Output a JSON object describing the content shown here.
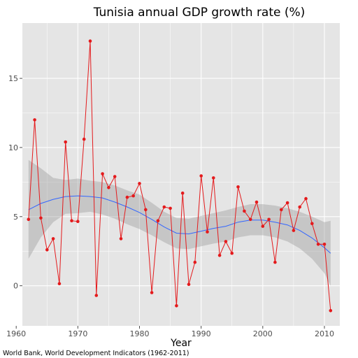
{
  "chart_data": {
    "type": "line",
    "title": "Tunisia annual GDP growth rate (%)",
    "xlabel": "Year",
    "ylabel": "",
    "caption": "World Bank, World Development Indicators (1962-2011)",
    "xlim": [
      1961,
      2012.5
    ],
    "ylim": [
      -2.9,
      19.0
    ],
    "x_ticks": [
      1960,
      1970,
      1980,
      1990,
      2000,
      2010
    ],
    "y_ticks": [
      0,
      5,
      10,
      15
    ],
    "grid": true,
    "legend": "none",
    "colors": {
      "panel": "#e5e5e5",
      "grid": "#ffffff",
      "series": "#e41a1c",
      "smooth": "#3366ff",
      "band": "#999999"
    },
    "series": [
      {
        "x": [
          1962,
          1963,
          1964,
          1965,
          1966,
          1967,
          1968,
          1969,
          1970,
          1971,
          1972,
          1973,
          1974,
          1975,
          1976,
          1977,
          1978,
          1979,
          1980,
          1981,
          1982,
          1983,
          1984,
          1985,
          1986,
          1987,
          1988,
          1989,
          1990,
          1991,
          1992,
          1993,
          1994,
          1995,
          1996,
          1997,
          1998,
          1999,
          2000,
          2001,
          2002,
          2003,
          2004,
          2005,
          2006,
          2007,
          2008,
          2009,
          2010,
          2011
        ],
        "y": [
          4.8,
          12.0,
          4.9,
          2.6,
          3.4,
          0.15,
          10.4,
          4.7,
          4.65,
          10.6,
          17.7,
          -0.7,
          8.1,
          7.1,
          7.9,
          3.4,
          6.4,
          6.5,
          7.4,
          5.5,
          -0.5,
          4.7,
          5.7,
          5.6,
          -1.45,
          6.7,
          0.1,
          1.7,
          7.95,
          3.9,
          7.8,
          2.2,
          3.2,
          2.35,
          7.15,
          5.4,
          4.8,
          6.05,
          4.3,
          4.8,
          1.7,
          5.5,
          6.0,
          4.0,
          5.7,
          6.3,
          4.5,
          3.0,
          3.0,
          -1.8
        ]
      }
    ],
    "smooth": {
      "x": [
        1962,
        1964,
        1966,
        1968,
        1970,
        1972,
        1974,
        1976,
        1978,
        1980,
        1982,
        1984,
        1986,
        1988,
        1990,
        1992,
        1994,
        1996,
        1998,
        2000,
        2002,
        2004,
        2006,
        2008,
        2010,
        2011
      ],
      "y": [
        5.5,
        5.95,
        6.25,
        6.45,
        6.5,
        6.45,
        6.35,
        6.05,
        5.7,
        5.3,
        4.8,
        4.25,
        3.8,
        3.75,
        3.95,
        4.15,
        4.3,
        4.6,
        4.75,
        4.75,
        4.6,
        4.4,
        4.0,
        3.45,
        2.75,
        2.35
      ],
      "lower": [
        1.95,
        3.5,
        4.6,
        5.2,
        5.25,
        5.35,
        5.15,
        4.85,
        4.45,
        4.1,
        3.65,
        3.15,
        2.7,
        2.65,
        2.85,
        3.05,
        3.2,
        3.5,
        3.65,
        3.65,
        3.5,
        3.2,
        2.7,
        1.95,
        0.9,
        0.0
      ],
      "upper": [
        9.1,
        8.5,
        7.8,
        7.65,
        7.75,
        7.6,
        7.5,
        7.25,
        6.9,
        6.6,
        6.0,
        5.35,
        4.9,
        4.85,
        5.05,
        5.25,
        5.45,
        5.7,
        5.9,
        5.9,
        5.8,
        5.6,
        5.35,
        5.0,
        4.6,
        4.7
      ]
    }
  }
}
